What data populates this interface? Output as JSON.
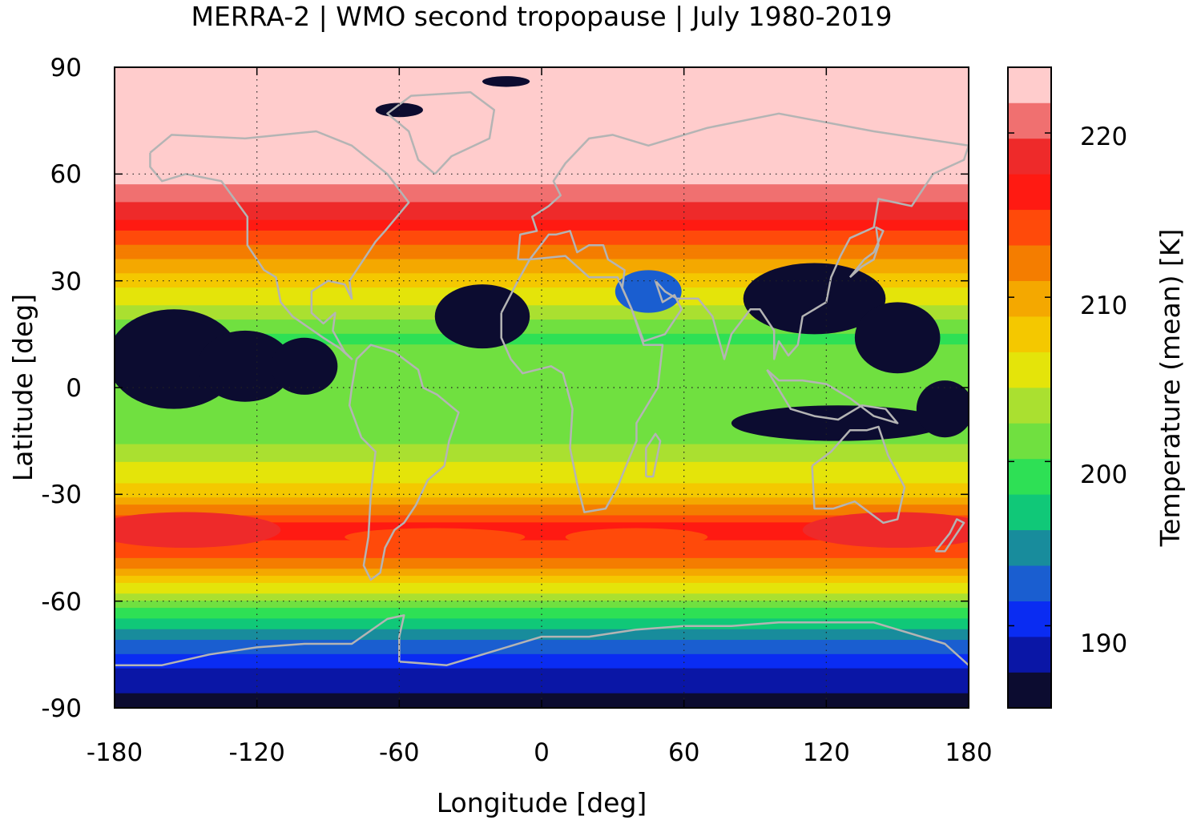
{
  "figure": {
    "title": "MERRA-2 | WMO second tropopause | July 1980-2019"
  },
  "chart_data": {
    "type": "heatmap",
    "title": "MERRA-2 | WMO second tropopause | July 1980-2019",
    "xlabel": "Longitude [deg]",
    "ylabel": "Latitude [deg]",
    "xlim": [
      -180,
      180
    ],
    "ylim": [
      -90,
      90
    ],
    "xticks": [
      "-180",
      "-120",
      "-60",
      "0",
      "60",
      "120",
      "180"
    ],
    "yticks": [
      "90",
      "60",
      "30",
      "0",
      "-30",
      "-60",
      "-90"
    ],
    "grid": "dotted",
    "coastlines": true,
    "colorbar": {
      "label": "Temperature (mean) [K]",
      "ticks": [
        "220",
        "210",
        "200",
        "190"
      ],
      "range": [
        185,
        224
      ],
      "colors": [
        "#0c0c30",
        "#0a16a6",
        "#0a2cf2",
        "#1a5ed0",
        "#188c9c",
        "#10c878",
        "#2ee055",
        "#70e040",
        "#aae030",
        "#e4e40a",
        "#f4c800",
        "#f4a800",
        "#f47d00",
        "#ff4a0a",
        "#ff1a12",
        "#ee2a2a",
        "#f07070",
        "#ffcccc"
      ]
    },
    "approx_zonal_mean_K": [
      {
        "lat": 90,
        "value": 223
      },
      {
        "lat": 60,
        "value": 223
      },
      {
        "lat": 50,
        "value": 219
      },
      {
        "lat": 40,
        "value": 213
      },
      {
        "lat": 30,
        "value": 208
      },
      {
        "lat": 15,
        "value": 200
      },
      {
        "lat": 0,
        "value": 201
      },
      {
        "lat": -15,
        "value": 202
      },
      {
        "lat": -30,
        "value": 208
      },
      {
        "lat": -40,
        "value": 217
      },
      {
        "lat": -50,
        "value": 212
      },
      {
        "lat": -60,
        "value": 202
      },
      {
        "lat": -70,
        "value": 194
      },
      {
        "lat": -80,
        "value": 189
      },
      {
        "lat": -90,
        "value": 186
      }
    ]
  }
}
